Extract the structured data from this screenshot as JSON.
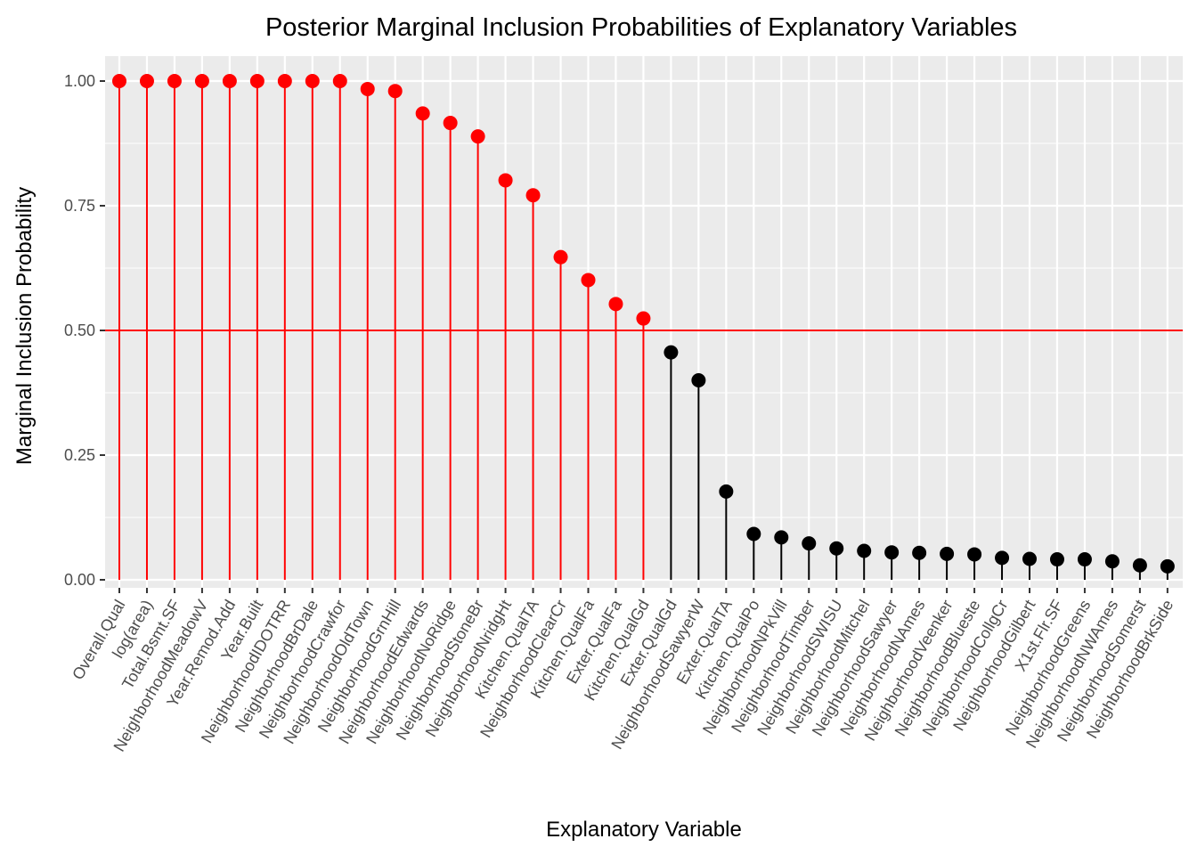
{
  "chart_data": {
    "type": "lollipop",
    "title": "Posterior Marginal Inclusion Probabilities of Explanatory Variables",
    "xlabel": "Explanatory Variable",
    "ylabel": "Marginal Inclusion Probability",
    "ylim": [
      0,
      1
    ],
    "yticks": [
      "0.00",
      "0.25",
      "0.50",
      "0.75",
      "1.00"
    ],
    "threshold": 0.5,
    "grid": true,
    "legend": "none",
    "colors": {
      "above_threshold": "#ff0000",
      "below_threshold": "#000000",
      "panel_background": "#ebebeb",
      "grid": "#ffffff",
      "threshold_line": "#ff0000"
    },
    "categories": [
      "Overall.Qual",
      "log(area)",
      "Total.Bsmt.SF",
      "NeighborhoodMeadowV",
      "Year.Remod.Add",
      "Year.Built",
      "NeighborhoodIDOTRR",
      "NeighborhoodBrDale",
      "NeighborhoodCrawfor",
      "NeighborhoodOldTown",
      "NeighborhoodGrnHill",
      "NeighborhoodEdwards",
      "NeighborhoodNoRidge",
      "NeighborhoodStoneBr",
      "NeighborhoodNridgHt",
      "Kitchen.QualTA",
      "NeighborhoodClearCr",
      "Kitchen.QualFa",
      "Exter.QualFa",
      "Kitchen.QualGd",
      "Exter.QualGd",
      "NeighborhoodSawyerW",
      "Exter.QualTA",
      "Kitchen.QualPo",
      "NeighborhoodNPkVill",
      "NeighborhoodTimber",
      "NeighborhoodSWISU",
      "NeighborhoodMitchel",
      "NeighborhoodSawyer",
      "NeighborhoodNAmes",
      "NeighborhoodVeenker",
      "NeighborhoodBlueste",
      "NeighborhoodCollgCr",
      "NeighborhoodGilbert",
      "X1st.Flr.SF",
      "NeighborhoodGreens",
      "NeighborhoodNWAmes",
      "NeighborhoodSomerst",
      "NeighborhoodBrkSide"
    ],
    "values": [
      1.0,
      1.0,
      1.0,
      1.0,
      1.0,
      1.0,
      1.0,
      1.0,
      1.0,
      0.984,
      0.98,
      0.935,
      0.916,
      0.889,
      0.801,
      0.771,
      0.647,
      0.601,
      0.553,
      0.524,
      0.456,
      0.4,
      0.177,
      0.092,
      0.085,
      0.073,
      0.063,
      0.058,
      0.055,
      0.054,
      0.052,
      0.051,
      0.044,
      0.042,
      0.041,
      0.041,
      0.037,
      0.029,
      0.027
    ]
  }
}
